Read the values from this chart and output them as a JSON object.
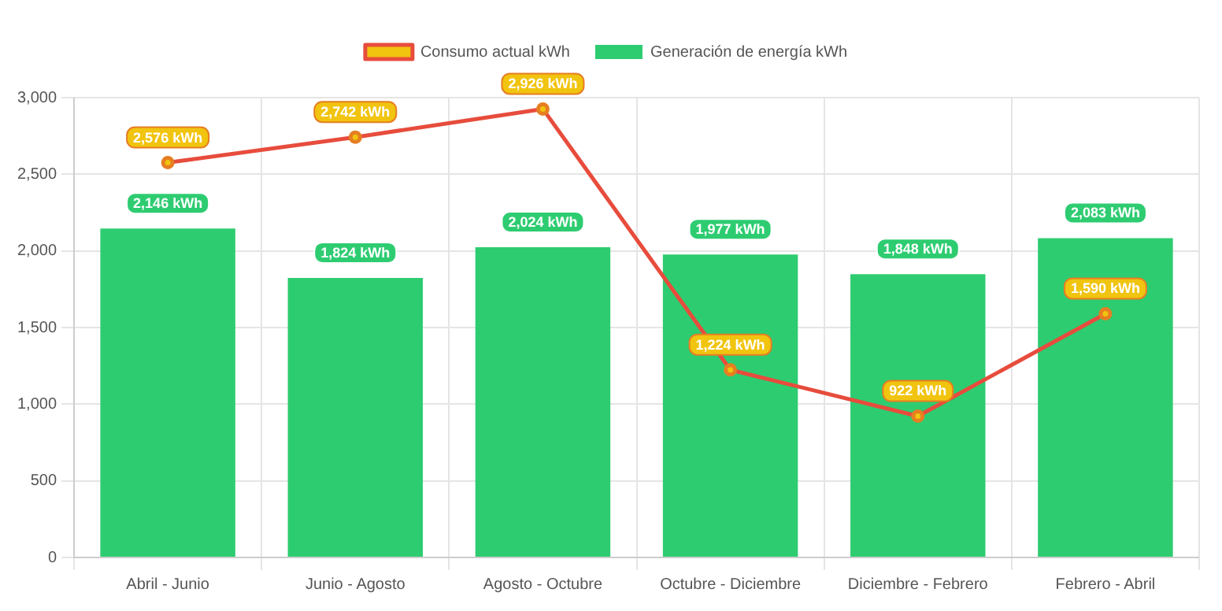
{
  "chart_data": {
    "type": "bar",
    "categories": [
      "Abril - Junio",
      "Junio - Agosto",
      "Agosto - Octubre",
      "Octubre - Diciembre",
      "Diciembre - Febrero",
      "Febrero - Abril"
    ],
    "series": [
      {
        "name": "Consumo actual kWh",
        "type": "line",
        "color": "#e74c3c",
        "values": [
          2576,
          2742,
          2926,
          1224,
          922,
          1590
        ],
        "value_labels": [
          "2,576 kWh",
          "2,742 kWh",
          "2,926 kWh",
          "1,224 kWh",
          "922 kWh",
          "1,590 kWh"
        ]
      },
      {
        "name": "Generación de energía kWh",
        "color": "#2ecc71",
        "values": [
          2146,
          1824,
          2024,
          1977,
          1848,
          2083
        ],
        "value_labels": [
          "2,146 kWh",
          "1,824 kWh",
          "2,024 kWh",
          "1,977 kWh",
          "1,848 kWh",
          "2,083 kWh"
        ]
      }
    ],
    "ylim": [
      0,
      3000
    ],
    "yticks": [
      0,
      500,
      {
        "value": 1000,
        "label": "1,000"
      },
      {
        "value": 1500,
        "label": "1,500"
      },
      {
        "value": 2000,
        "label": "2,000"
      },
      {
        "value": 2500,
        "label": "2,500"
      },
      {
        "value": 3000,
        "label": "3,000"
      }
    ],
    "grid": true,
    "legend": "top",
    "marker": "circle",
    "line_style": "solid"
  }
}
